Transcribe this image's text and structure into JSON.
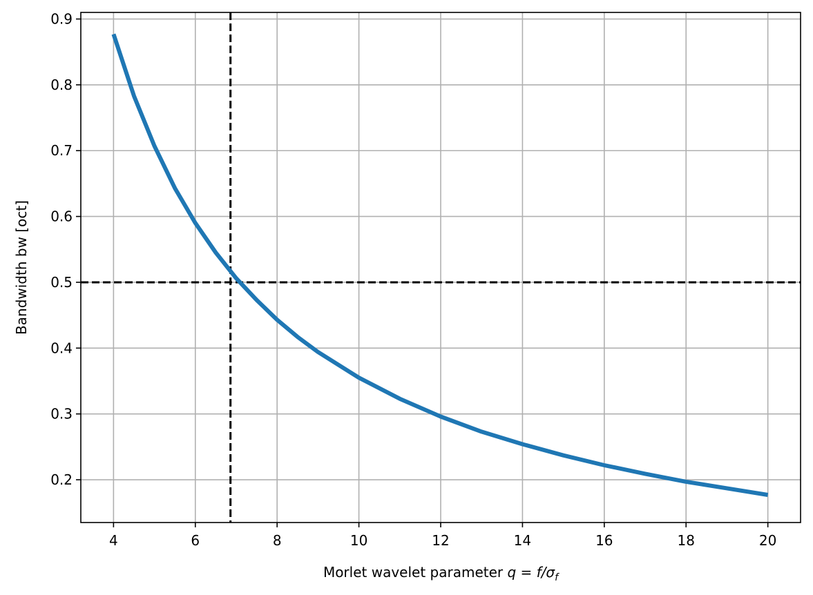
{
  "chart_data": {
    "type": "line",
    "title": "",
    "xlabel": "Morlet wavelet parameter ",
    "xlabel_math": "q = f/σ",
    "xlabel_math_subscript": "f",
    "ylabel": "Bandwidth bw [oct]",
    "xlim": [
      3.2,
      20.8
    ],
    "ylim": [
      0.135,
      0.91
    ],
    "xticks": [
      4,
      6,
      8,
      10,
      12,
      14,
      16,
      18,
      20
    ],
    "yticks": [
      0.2,
      0.3,
      0.4,
      0.5,
      0.6,
      0.7,
      0.8,
      0.9
    ],
    "grid": true,
    "legend": "none",
    "series": [
      {
        "color": "#1f77b4",
        "x": [
          4,
          4.5,
          5,
          5.5,
          6,
          6.5,
          7,
          7.5,
          8,
          8.5,
          9,
          10,
          11,
          12,
          13,
          14,
          15,
          16,
          17,
          18,
          19,
          20
        ],
        "y": [
          0.877,
          0.783,
          0.707,
          0.643,
          0.59,
          0.545,
          0.506,
          0.473,
          0.443,
          0.417,
          0.394,
          0.355,
          0.323,
          0.296,
          0.273,
          0.254,
          0.237,
          0.222,
          0.209,
          0.197,
          0.187,
          0.177
        ]
      }
    ],
    "reference_lines": [
      {
        "orientation": "horizontal",
        "value": 0.5,
        "color": "#000000",
        "style": "dashed"
      },
      {
        "orientation": "vertical",
        "value": 6.86,
        "color": "#000000",
        "style": "dashed"
      }
    ]
  }
}
